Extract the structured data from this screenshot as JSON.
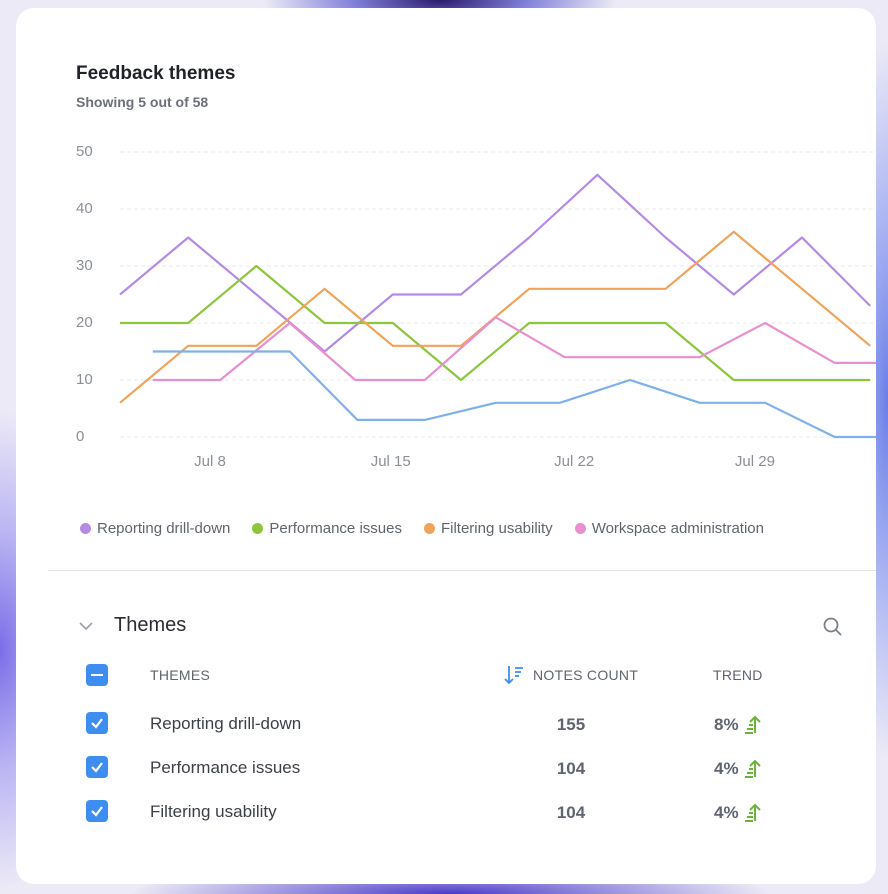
{
  "header": {
    "title": "Feedback themes",
    "subtitle": "Showing 5 out of 58"
  },
  "chart_data": {
    "type": "line",
    "xlim": [
      0,
      11.1
    ],
    "xticks": [
      {
        "value": 1.32,
        "label": "Jul 8"
      },
      {
        "value": 3.97,
        "label": "Jul 15"
      },
      {
        "value": 6.66,
        "label": "Jul 22"
      },
      {
        "value": 9.31,
        "label": "Jul 29"
      }
    ],
    "ylim": [
      0,
      50
    ],
    "yticks": [
      0,
      10,
      20,
      30,
      40,
      50
    ],
    "grid": true,
    "series": [
      {
        "name": "Reporting drill-down",
        "color": "#b48ae6",
        "x": [
          0,
          1,
          2,
          3,
          4,
          5,
          6,
          7,
          8,
          9,
          10,
          11
        ],
        "values": [
          25,
          35,
          25,
          15,
          25,
          25,
          35,
          46,
          35,
          25,
          35,
          23
        ]
      },
      {
        "name": "Performance issues",
        "color": "#8cc63f",
        "x": [
          0,
          1,
          2,
          3,
          4,
          5,
          6,
          7,
          8,
          9,
          10,
          11
        ],
        "values": [
          20,
          20,
          30,
          20,
          20,
          10,
          20,
          20,
          20,
          10,
          10,
          10
        ]
      },
      {
        "name": "Filtering usability",
        "color": "#f0a35a",
        "x": [
          0,
          1,
          2,
          3,
          4,
          5,
          6,
          7,
          8,
          9,
          10,
          11
        ],
        "values": [
          6,
          16,
          16,
          26,
          16,
          16,
          26,
          26,
          26,
          36,
          26,
          16
        ]
      },
      {
        "name": "Workspace administration",
        "color": "#e88fd0",
        "x": [
          0.48,
          1.47,
          2.49,
          3.45,
          4.47,
          5.51,
          6.52,
          7.52,
          8.5,
          9.46,
          10.48,
          11.1
        ],
        "values": [
          10,
          10,
          20,
          10,
          10,
          21,
          14,
          14,
          14,
          20,
          13,
          13
        ]
      },
      {
        "color": "#7fb0ea",
        "x": [
          0.48,
          1.47,
          2.49,
          3.48,
          4.47,
          5.51,
          6.45,
          7.48,
          8.5,
          9.46,
          10.48,
          11.1
        ],
        "values": [
          15,
          15,
          15,
          3,
          3,
          6,
          6,
          10,
          6,
          6,
          0,
          0
        ]
      }
    ]
  },
  "section": {
    "title": "Themes"
  },
  "table": {
    "columns": [
      "THEMES",
      "NOTES COUNT",
      "TREND"
    ],
    "rows": [
      {
        "theme": "Reporting drill-down",
        "notes_count": 155,
        "trend": "8%"
      },
      {
        "theme": "Performance issues",
        "notes_count": 104,
        "trend": "4%"
      },
      {
        "theme": "Filtering usability",
        "notes_count": 104,
        "trend": "4%"
      }
    ]
  }
}
